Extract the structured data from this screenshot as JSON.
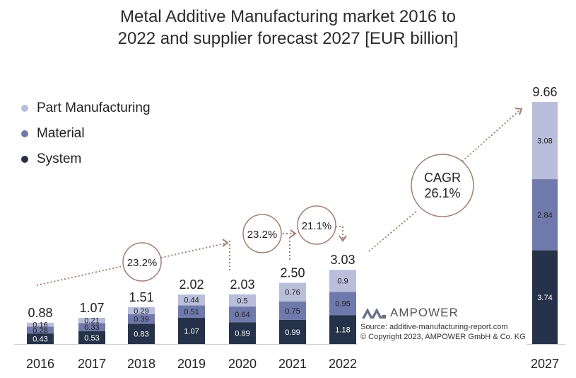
{
  "title_line1": "Metal Additive Manufacturing market 2016 to",
  "title_line2": "2022 and supplier forecast 2027 [EUR billion]",
  "brand": "AMPOWER",
  "source_line1": "Source: additive-manufacturing-report.com",
  "source_line2": "© Copyright 2023, AMPOWER GmbH & Co. KG",
  "colors": {
    "part": "#b9bedb",
    "material": "#7079ac",
    "system": "#263249",
    "arrow": "#a08074"
  },
  "chart_data": {
    "type": "bar",
    "stacked": true,
    "categories": [
      "2016",
      "2017",
      "2018",
      "2019",
      "2020",
      "2021",
      "2022",
      "2027"
    ],
    "series": [
      {
        "name": "System",
        "values": [
          0.43,
          0.53,
          0.83,
          1.07,
          0.89,
          0.99,
          1.18,
          3.74
        ]
      },
      {
        "name": "Material",
        "values": [
          0.28,
          0.33,
          0.39,
          0.51,
          0.64,
          0.75,
          0.95,
          2.84
        ]
      },
      {
        "name": "Part Manufacturing",
        "values": [
          0.16,
          0.21,
          0.29,
          0.44,
          0.5,
          0.76,
          0.9,
          3.08
        ]
      }
    ],
    "totals": [
      "0.88",
      "1.07",
      "1.51",
      "2.02",
      "2.03",
      "2.50",
      "3.03",
      "9.66"
    ],
    "legend_order": [
      "Part Manufacturing",
      "Material",
      "System"
    ],
    "annotations": [
      {
        "text": "23.2%",
        "between": [
          "2016",
          "2020"
        ]
      },
      {
        "text": "23.2%",
        "between": [
          "2020",
          "2021"
        ]
      },
      {
        "text": "21.1%",
        "between": [
          "2021",
          "2022"
        ]
      },
      {
        "text_line1": "CAGR",
        "text_line2": "26.1%",
        "between": [
          "2022",
          "2027"
        ]
      }
    ],
    "grid": false,
    "legend_position": "top-left"
  }
}
